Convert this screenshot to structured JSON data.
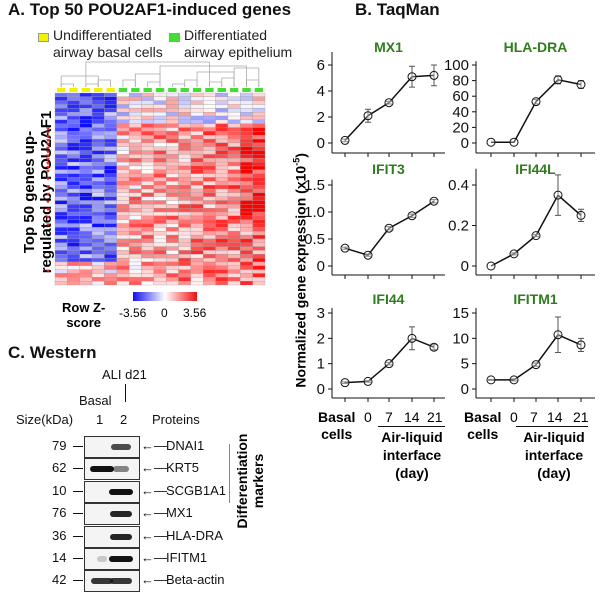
{
  "panel_a": {
    "title": "A. Top 50 POU2AF1-induced genes",
    "legend": [
      {
        "label_line1": "Undifferentiated",
        "label_line2": "airway basal cells",
        "color": "#f2f200"
      },
      {
        "label_line1": "Differentiated",
        "label_line2": "airway epithelium",
        "color": "#44dd33"
      }
    ],
    "ylabel_line1": "Top 50 genes up-",
    "ylabel_line2": "regulated by POU2AF1",
    "colorbar": {
      "title_line1": "Row Z-",
      "title_line2": "score",
      "min": "-3.56",
      "mid": "0",
      "max": "3.56",
      "low_color": "#1010ee",
      "high_color": "#ee1010"
    },
    "groups": {
      "basal_columns": 5,
      "differentiated_columns": 12
    },
    "rows": 50
  },
  "panel_b": {
    "title": "B. TaqMan",
    "ylabel": "Normalized gene expression (x10",
    "ylabel_exp": "-5",
    "ylabel_close": ")",
    "xlabels": {
      "basal_1": "Basal",
      "basal_2": "cells",
      "days": [
        "0",
        "7",
        "14",
        "21"
      ],
      "ali_1": "Air-liquid",
      "ali_2": "interface",
      "ali_3": "(day)"
    }
  },
  "chart_data": [
    {
      "type": "line",
      "title": "MX1",
      "categories": [
        "Basal cells",
        "0",
        "7",
        "14",
        "21"
      ],
      "values": [
        0.2,
        2.1,
        3.1,
        5.1,
        5.2
      ],
      "errors": [
        0.1,
        0.5,
        0.1,
        0.8,
        0.8
      ],
      "ylim": [
        0,
        7
      ],
      "yticks": [
        "0",
        "2",
        "4",
        "6"
      ],
      "ytick_values": [
        0,
        2,
        4,
        6
      ]
    },
    {
      "type": "line",
      "title": "HLA-DRA",
      "categories": [
        "Basal cells",
        "0",
        "7",
        "14",
        "21"
      ],
      "values": [
        1,
        1,
        53,
        81,
        75
      ],
      "errors": [
        0,
        0,
        3,
        5,
        5
      ],
      "ylim": [
        0,
        105
      ],
      "yticks": [
        "0",
        "20",
        "40",
        "60",
        "80",
        "100"
      ],
      "ytick_values": [
        0,
        20,
        40,
        60,
        80,
        100
      ]
    },
    {
      "type": "line",
      "title": "IFIT3",
      "categories": [
        "Basal cells",
        "0",
        "7",
        "14",
        "21"
      ],
      "values": [
        0.33,
        0.2,
        0.7,
        0.93,
        1.2
      ],
      "errors": [
        0.02,
        0.02,
        0.03,
        0.03,
        0.03
      ],
      "ylim": [
        0,
        1.6
      ],
      "yticks": [
        "0",
        "0.5",
        "1.0",
        "1.5"
      ],
      "ytick_values": [
        0,
        0.5,
        1.0,
        1.5
      ]
    },
    {
      "type": "line",
      "title": "IFI44L",
      "categories": [
        "Basal cells",
        "0",
        "7",
        "14",
        "21"
      ],
      "values": [
        0,
        0.06,
        0.15,
        0.35,
        0.25
      ],
      "errors": [
        0,
        0.005,
        0.005,
        0.1,
        0.03
      ],
      "ylim": [
        0,
        0.48
      ],
      "yticks": [
        "0",
        "0.2",
        "0.4"
      ],
      "ytick_values": [
        0,
        0.2,
        0.4
      ]
    },
    {
      "type": "line",
      "title": "IFI44",
      "categories": [
        "Basal cells",
        "0",
        "7",
        "14",
        "21"
      ],
      "values": [
        0.25,
        0.3,
        1.0,
        2.0,
        1.65
      ],
      "errors": [
        0.03,
        0.03,
        0.05,
        0.45,
        0.1
      ],
      "ylim": [
        0,
        3.2
      ],
      "yticks": [
        "0",
        "1",
        "2",
        "3"
      ],
      "ytick_values": [
        0,
        1,
        2,
        3
      ]
    },
    {
      "type": "line",
      "title": "IFITM1",
      "categories": [
        "Basal cells",
        "0",
        "7",
        "14",
        "21"
      ],
      "values": [
        1.8,
        1.8,
        4.8,
        10.7,
        8.7
      ],
      "errors": [
        0.1,
        0.2,
        0.3,
        3.5,
        1.3
      ],
      "ylim": [
        0,
        16
      ],
      "yticks": [
        "0",
        "5",
        "10",
        "15"
      ],
      "ytick_values": [
        0,
        5,
        10,
        15
      ]
    }
  ],
  "panel_c": {
    "title": "C. Western",
    "ali_label": "ALI d21",
    "basal_label": "Basal",
    "size_header": "Size(kDa)",
    "lane1": "1",
    "lane2": "2",
    "proteins_header": "Proteins",
    "marker_group_line1": "Differentiation",
    "marker_group_line2": "markers",
    "blots": [
      {
        "size": "79",
        "protein": "DNAI1",
        "lane1": 0,
        "lane2": 0.7
      },
      {
        "size": "62",
        "protein": "KRT5",
        "lane1": 1,
        "lane2": 0.4
      },
      {
        "size": "10",
        "protein": "SCGB1A1",
        "lane1": 0,
        "lane2": 1
      },
      {
        "size": "76",
        "protein": "MX1",
        "lane1": 0,
        "lane2": 0.9
      },
      {
        "size": "36",
        "protein": "HLA-DRA",
        "lane1": 0,
        "lane2": 0.9
      },
      {
        "size": "14",
        "protein": "IFITM1",
        "lane1": 0.05,
        "lane2": 1
      },
      {
        "size": "42",
        "protein": "Beta-actin",
        "lane1": 0.8,
        "lane2": 0.8
      }
    ]
  }
}
